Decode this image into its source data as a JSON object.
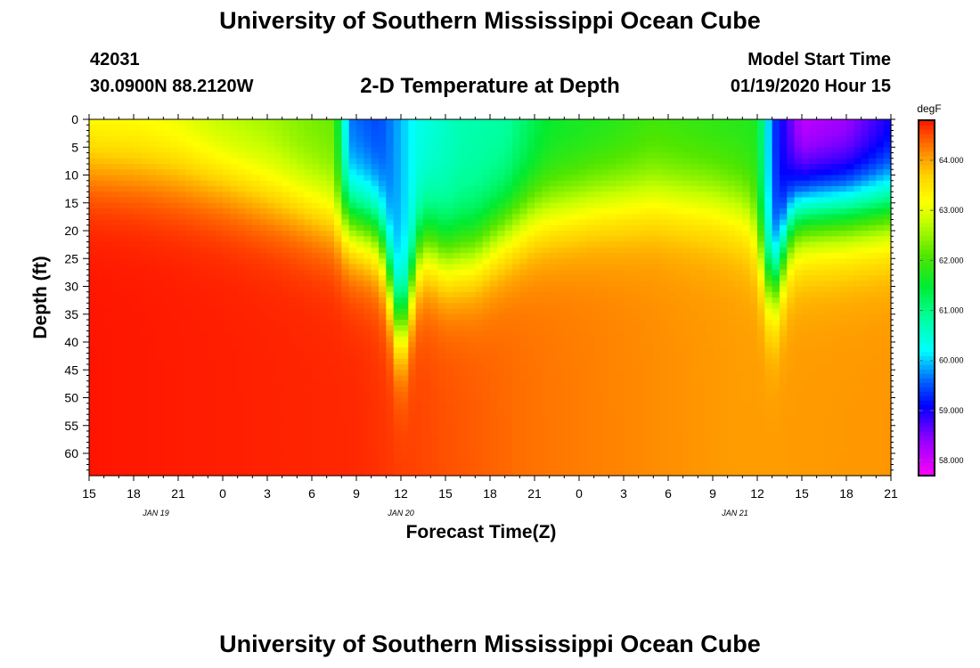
{
  "header": {
    "title": "University of Southern Mississippi Ocean Cube",
    "station_id": "42031",
    "coordinates": "30.0900N 88.2120W",
    "subtitle": "2-D Temperature at Depth",
    "model_label": "Model Start Time",
    "model_time": "01/19/2020 Hour 15"
  },
  "footer": {
    "title": "University of Southern Mississippi Ocean Cube"
  },
  "chart_data": {
    "type": "heatmap",
    "title": "2-D Temperature at Depth",
    "xlabel": "Forecast Time(Z)",
    "ylabel": "Depth (ft)",
    "x_range_hours": [
      0,
      54
    ],
    "x_tick_labels": [
      "15",
      "18",
      "21",
      "0",
      "3",
      "6",
      "9",
      "12",
      "15",
      "18",
      "21",
      "0",
      "3",
      "6",
      "9",
      "12",
      "15",
      "18",
      "21"
    ],
    "date_labels": [
      {
        "text": "JAN 19",
        "hour": 4.5
      },
      {
        "text": "JAN 20",
        "hour": 21
      },
      {
        "text": "JAN 21",
        "hour": 43.5
      }
    ],
    "ylim": [
      0,
      64
    ],
    "y_tick_labels": [
      "0",
      "5",
      "10",
      "15",
      "20",
      "25",
      "30",
      "35",
      "40",
      "45",
      "50",
      "55",
      "60"
    ],
    "colorbar": {
      "unit": "degF",
      "range": [
        57.7,
        64.8
      ],
      "tick_labels": [
        "58.000",
        "59.000",
        "60.000",
        "61.000",
        "62.000",
        "63.000",
        "64.000"
      ]
    },
    "surface_temperature_degF": [
      {
        "hour": 0,
        "value": 63.0
      },
      {
        "hour": 3,
        "value": 63.0
      },
      {
        "hour": 6,
        "value": 62.9
      },
      {
        "hour": 9,
        "value": 62.6
      },
      {
        "hour": 12,
        "value": 62.5
      },
      {
        "hour": 14.5,
        "value": 62.3
      },
      {
        "hour": 16.5,
        "value": 62.2
      },
      {
        "hour": 17.5,
        "value": 59.6
      },
      {
        "hour": 19.5,
        "value": 59.4
      },
      {
        "hour": 22,
        "value": 60.3
      },
      {
        "hour": 25,
        "value": 60.7
      },
      {
        "hour": 28,
        "value": 60.8
      },
      {
        "hour": 31,
        "value": 61.5
      },
      {
        "hour": 35,
        "value": 61.7
      },
      {
        "hour": 38,
        "value": 61.9
      },
      {
        "hour": 45,
        "value": 61.7
      },
      {
        "hour": 46,
        "value": 59.5
      },
      {
        "hour": 48,
        "value": 58.0
      },
      {
        "hour": 51,
        "value": 58.2
      },
      {
        "hour": 54,
        "value": 58.9
      }
    ],
    "bottom_temperature_degF": [
      {
        "hour": 0,
        "value": 64.8
      },
      {
        "hour": 18,
        "value": 64.7
      },
      {
        "hour": 30,
        "value": 64.3
      },
      {
        "hour": 44,
        "value": 64.05
      },
      {
        "hour": 54,
        "value": 64.1
      }
    ]
  }
}
